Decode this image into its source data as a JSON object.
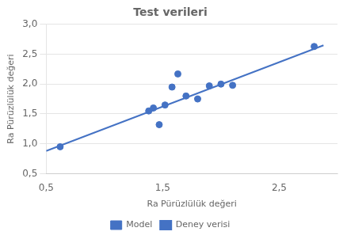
{
  "chart_data": {
    "type": "scatter",
    "title": "Test verileri",
    "xlabel": "Ra Pürüzlülük değeri",
    "ylabel": "Ra Pürüzlülük değeri",
    "series": [
      {
        "name": "Model",
        "type": "scatter",
        "color": "#4472C4",
        "x": [
          0.62,
          1.38,
          1.42,
          1.47,
          1.52,
          1.58,
          1.63,
          1.7,
          1.8,
          1.9,
          2.0,
          2.1,
          2.8
        ],
        "values": [
          0.95,
          1.55,
          1.6,
          1.32,
          1.65,
          1.95,
          2.17,
          1.8,
          1.75,
          1.97,
          2.0,
          1.98,
          2.63
        ]
      },
      {
        "name": "Deney verisi",
        "type": "line",
        "color": "#4472C4",
        "x": [
          0.5,
          2.88
        ],
        "values": [
          0.88,
          2.65
        ]
      }
    ],
    "xlim": [
      0.5,
      3.0
    ],
    "ylim": [
      0.5,
      3.0
    ],
    "xticks": [
      {
        "value": 0.5,
        "label": "0,5"
      },
      {
        "value": 1.5,
        "label": "1,5"
      },
      {
        "value": 2.5,
        "label": "2,5"
      }
    ],
    "yticks": [
      {
        "value": 0.5,
        "label": "0,5"
      },
      {
        "value": 1.0,
        "label": "1,0"
      },
      {
        "value": 1.5,
        "label": "1,5"
      },
      {
        "value": 2.0,
        "label": "2,0"
      },
      {
        "value": 2.5,
        "label": "2,5"
      },
      {
        "value": 3.0,
        "label": "3,0"
      }
    ],
    "grid": "y",
    "legend": "bottom"
  }
}
